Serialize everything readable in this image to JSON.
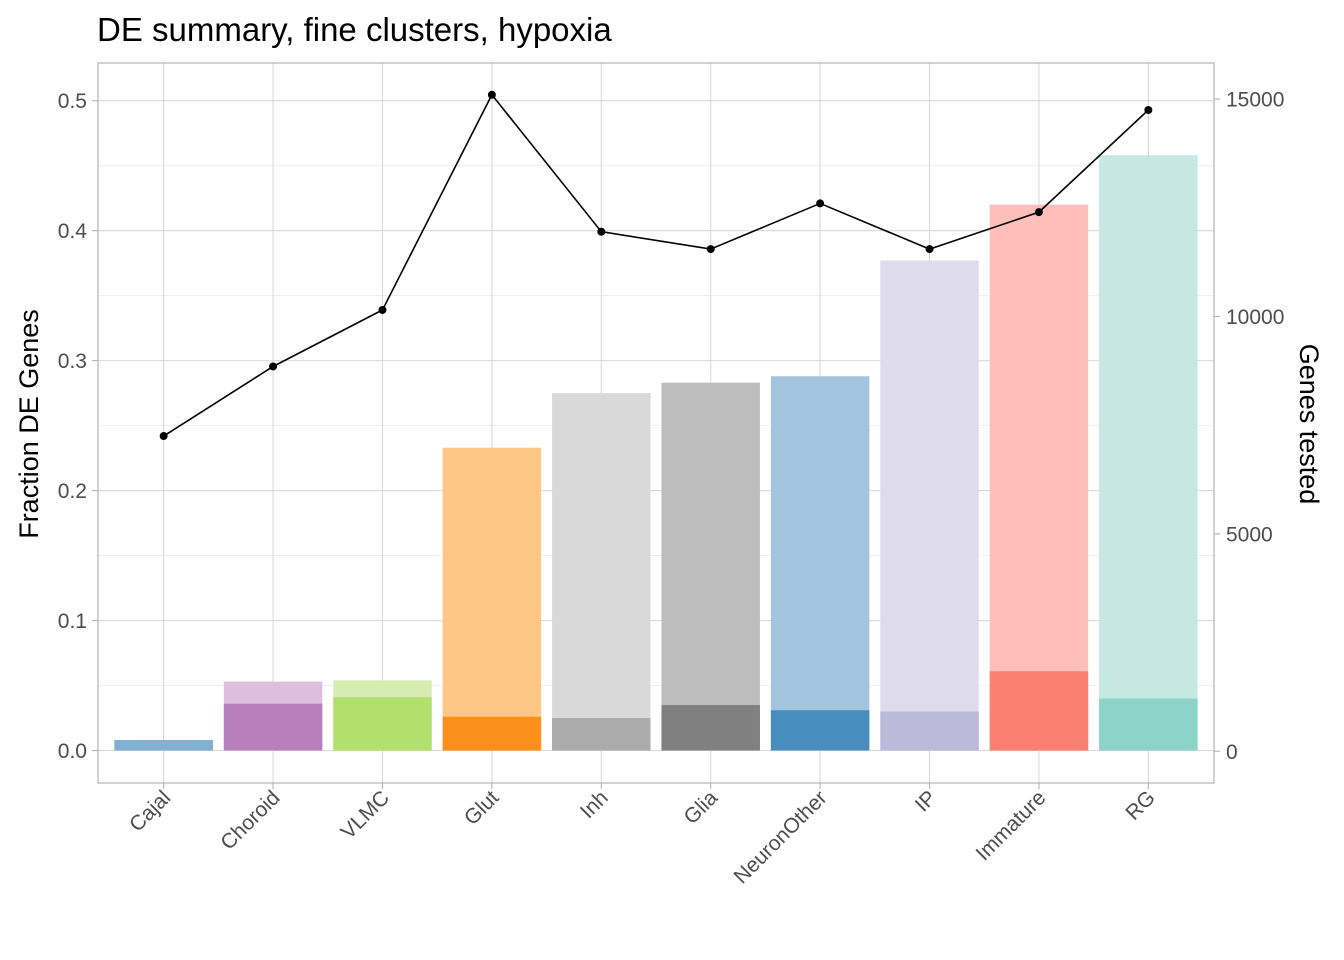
{
  "chart_data": {
    "type": "bar",
    "title": "DE summary, fine clusters, hypoxia",
    "ylabel": "Fraction DE Genes",
    "y2label": "Genes tested",
    "xlabel": "",
    "ylim": [
      -0.025,
      0.529
    ],
    "y2lim": [
      -730,
      15830
    ],
    "yticks": [
      "0.0",
      "0.1",
      "0.2",
      "0.3",
      "0.4",
      "0.5"
    ],
    "y2ticks": [
      "0",
      "5000",
      "10000",
      "15000"
    ],
    "grid": true,
    "categories": [
      "Cajal",
      "Choroid",
      "VLMC",
      "Glut",
      "Inh",
      "Glia",
      "NeuronOther",
      "IP",
      "Immature",
      "RG"
    ],
    "series": [
      {
        "values": [
          0.008,
          0.053,
          0.054,
          0.233,
          0.275,
          0.283,
          0.288,
          0.377,
          0.42,
          0.458
        ],
        "colors": [
          "#80b1d3",
          "#ddbedf",
          "#d6ecb1",
          "#fdc785",
          "#d9d9d9",
          "#bdbdbd",
          "#a3c4de",
          "#dedcec",
          "#febeb9",
          "#c6e8e2"
        ]
      },
      {
        "values": [
          0.008,
          0.036,
          0.041,
          0.026,
          0.025,
          0.035,
          0.031,
          0.03,
          0.061,
          0.04
        ],
        "colors": [
          "#80b1d3",
          "#b97ebc",
          "#b3df6d",
          "#fd901d",
          "#ababab",
          "#808080",
          "#478ebf",
          "#bdb9da",
          "#fb8072",
          "#8dd3c7"
        ]
      },
      {
        "type": "line",
        "axis": "right",
        "values": [
          7250,
          8850,
          10150,
          15100,
          11950,
          11550,
          12600,
          11550,
          12400,
          14750
        ],
        "color": "#000000"
      }
    ]
  }
}
